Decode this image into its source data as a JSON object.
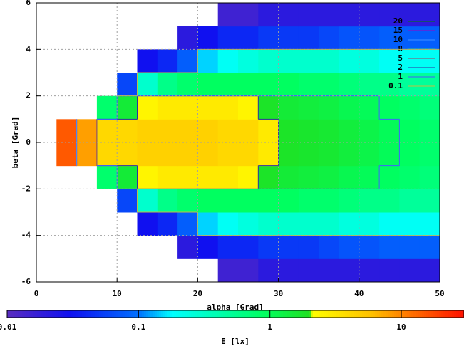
{
  "chart_data": {
    "type": "heatmap",
    "xlabel": "alpha [Grad]",
    "ylabel": "beta [Grad]",
    "cblabel": "E [lx]",
    "xlim": [
      0,
      50
    ],
    "xticks": [
      0,
      10,
      20,
      30,
      40,
      50
    ],
    "ylim": [
      6,
      -6
    ],
    "yticks": [
      -6,
      -4,
      -2,
      0,
      2,
      4,
      6
    ],
    "cblim": [
      0.01,
      30
    ],
    "cbticks": [
      0.01,
      0.1,
      1,
      10
    ],
    "cblog": true,
    "grid": true,
    "colorscale": [
      [
        0.01,
        "#5a2cc0"
      ],
      [
        0.03,
        "#1010f0"
      ],
      [
        0.1,
        "#0070ff"
      ],
      [
        0.18,
        "#00ffff"
      ],
      [
        0.9,
        "#00ff60"
      ],
      [
        2.0,
        "#20e020"
      ],
      [
        2.1,
        "#ffff00"
      ],
      [
        6,
        "#ffc000"
      ],
      [
        12,
        "#ff7000"
      ],
      [
        30,
        "#ff1000"
      ]
    ],
    "x": [
      1.25,
      3.75,
      6.25,
      8.75,
      11.25,
      13.75,
      16.25,
      18.75,
      21.25,
      23.75,
      26.25,
      28.75,
      31.25,
      33.75,
      36.25,
      38.75,
      41.25,
      43.75,
      46.25,
      48.75
    ],
    "y": [
      -5.5,
      -4.5,
      -3.5,
      -2.5,
      -1.5,
      -0.5,
      0.5,
      1.5,
      2.5,
      3.5,
      4.5,
      5.5
    ],
    "z": [
      [
        null,
        null,
        null,
        null,
        null,
        null,
        null,
        null,
        null,
        0.015,
        0.015,
        0.02,
        0.02,
        0.02,
        0.02,
        0.02,
        0.02,
        0.02,
        0.02,
        0.02
      ],
      [
        null,
        null,
        null,
        null,
        null,
        null,
        null,
        0.02,
        0.03,
        0.04,
        0.04,
        0.05,
        0.05,
        0.05,
        0.06,
        0.07,
        0.07,
        0.08,
        0.08,
        0.08
      ],
      [
        null,
        null,
        null,
        null,
        null,
        0.03,
        0.04,
        0.08,
        0.15,
        0.2,
        0.25,
        0.3,
        0.3,
        0.3,
        0.3,
        0.25,
        0.25,
        0.2,
        0.2,
        0.2
      ],
      [
        null,
        null,
        null,
        null,
        0.06,
        0.3,
        0.6,
        0.8,
        0.9,
        0.9,
        0.9,
        0.9,
        0.9,
        0.8,
        0.8,
        0.7,
        0.6,
        0.6,
        0.5,
        0.5
      ],
      [
        null,
        null,
        null,
        0.8,
        1.5,
        2.5,
        3,
        3,
        3,
        3,
        2.5,
        1.8,
        1.5,
        1.4,
        1.3,
        1.1,
        1.0,
        0.9,
        0.8,
        0.7
      ],
      [
        null,
        15,
        8,
        4,
        4,
        4.5,
        4.5,
        4.5,
        4.5,
        4,
        4,
        3,
        1.8,
        1.7,
        1.6,
        1.4,
        1.2,
        1.0,
        0.9,
        0.8
      ],
      [
        null,
        15,
        8,
        4,
        4,
        4.5,
        4.5,
        4.5,
        4.5,
        4,
        4,
        3,
        1.8,
        1.7,
        1.6,
        1.4,
        1.2,
        1.0,
        0.9,
        0.8
      ],
      [
        null,
        null,
        null,
        0.8,
        1.5,
        2.5,
        3,
        3,
        3,
        3,
        2.5,
        1.8,
        1.5,
        1.4,
        1.3,
        1.1,
        1.0,
        0.9,
        0.8,
        0.7
      ],
      [
        null,
        null,
        null,
        null,
        0.06,
        0.3,
        0.6,
        0.8,
        0.9,
        0.9,
        0.9,
        0.9,
        0.9,
        0.8,
        0.8,
        0.7,
        0.6,
        0.6,
        0.5,
        0.5
      ],
      [
        null,
        null,
        null,
        null,
        null,
        0.03,
        0.04,
        0.08,
        0.15,
        0.2,
        0.25,
        0.3,
        0.3,
        0.3,
        0.3,
        0.25,
        0.25,
        0.2,
        0.2,
        0.2
      ],
      [
        null,
        null,
        null,
        null,
        null,
        null,
        null,
        0.02,
        0.03,
        0.04,
        0.04,
        0.05,
        0.05,
        0.05,
        0.06,
        0.07,
        0.07,
        0.08,
        0.08,
        0.08
      ],
      [
        null,
        null,
        null,
        null,
        null,
        null,
        null,
        null,
        null,
        0.015,
        0.015,
        0.02,
        0.02,
        0.02,
        0.02,
        0.02,
        0.02,
        0.02,
        0.02,
        0.02
      ]
    ],
    "contours": [
      {
        "level": 20,
        "color": "#008000"
      },
      {
        "level": 15,
        "color": "#a000c0"
      },
      {
        "level": 10,
        "color": "#4090ff"
      },
      {
        "level": 8,
        "color": "#00c0c0"
      },
      {
        "level": 5,
        "color": "#a04060"
      },
      {
        "level": 2,
        "color": "#3030a0"
      },
      {
        "level": 1,
        "color": "#4060ff"
      },
      {
        "level": 0.1,
        "color": "#c0c040"
      }
    ]
  }
}
